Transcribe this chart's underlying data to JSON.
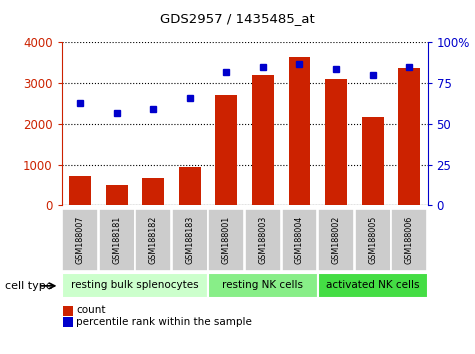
{
  "title": "GDS2957 / 1435485_at",
  "samples": [
    "GSM188007",
    "GSM188181",
    "GSM188182",
    "GSM188183",
    "GSM188001",
    "GSM188003",
    "GSM188004",
    "GSM188002",
    "GSM188005",
    "GSM188006"
  ],
  "counts": [
    720,
    510,
    660,
    940,
    2700,
    3200,
    3650,
    3100,
    2180,
    3380
  ],
  "percentiles": [
    63,
    57,
    59,
    66,
    82,
    85,
    87,
    84,
    80,
    85
  ],
  "cell_types": [
    {
      "label": "resting bulk splenocytes",
      "start": 0,
      "end": 4,
      "color": "#ccffcc"
    },
    {
      "label": "resting NK cells",
      "start": 4,
      "end": 7,
      "color": "#88ee88"
    },
    {
      "label": "activated NK cells",
      "start": 7,
      "end": 10,
      "color": "#44dd44"
    }
  ],
  "bar_color": "#cc2200",
  "dot_color": "#0000cc",
  "ylim_left": [
    0,
    4000
  ],
  "ylim_right": [
    0,
    100
  ],
  "yticks_left": [
    0,
    1000,
    2000,
    3000,
    4000
  ],
  "yticks_right": [
    0,
    25,
    50,
    75,
    100
  ],
  "ytick_labels_right": [
    "0",
    "25",
    "50",
    "75",
    "100%"
  ],
  "left_tick_color": "#cc2200",
  "right_tick_color": "#0000cc",
  "background_color": "#ffffff",
  "tick_label_bg": "#cccccc",
  "cell_type_label": "cell type",
  "legend_items": [
    "count",
    "percentile rank within the sample"
  ]
}
